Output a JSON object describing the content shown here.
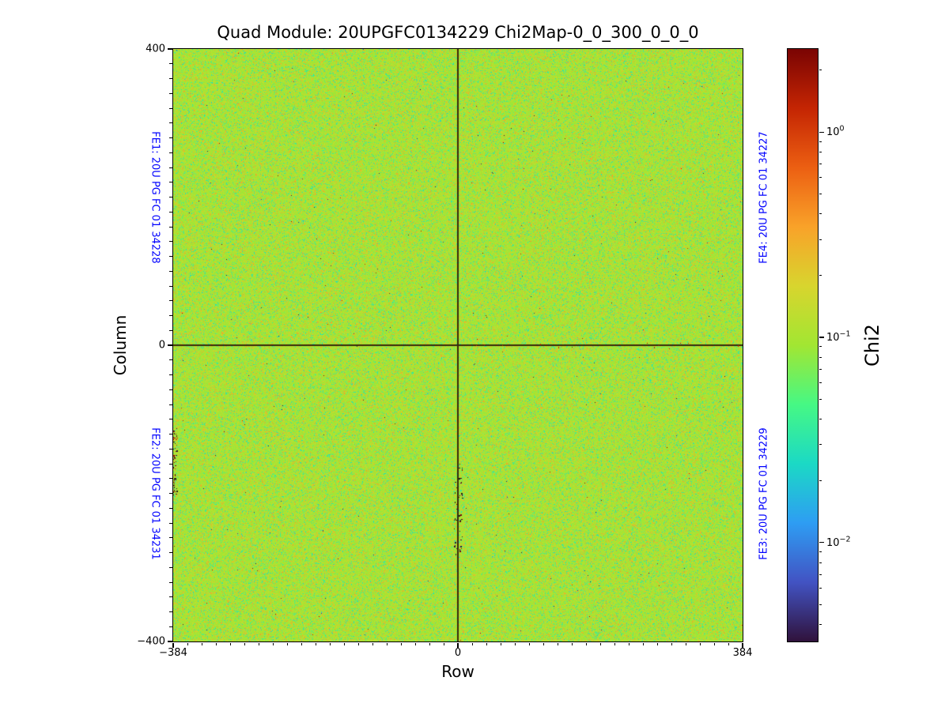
{
  "title": "Quad Module: 20UPGFC0134229 Chi2Map-0_0_300_0_0_0",
  "axes": {
    "xlabel": "Row",
    "ylabel": "Column",
    "xtick_labels": [
      "−384",
      "0",
      "384"
    ],
    "ytick_labels": [
      "400",
      "0",
      "−400"
    ]
  },
  "fe_labels": {
    "fe1": "FE1: 20U PG FC 01 34228",
    "fe2": "FE2: 20U PG FC 01 34231",
    "fe3": "FE3: 20U PG FC 01 34229",
    "fe4": "FE4: 20U PG FC 01 34227",
    "color": "#0000ff"
  },
  "colorbar": {
    "label": "Chi2",
    "scale": "log",
    "vmin": 0.0033,
    "vmax": 2.54,
    "major_ticks": [
      {
        "value": 1,
        "exponent": "0"
      },
      {
        "value": 0.1,
        "exponent": "−1"
      },
      {
        "value": 0.01,
        "exponent": "−2"
      }
    ],
    "cmap": "turbo",
    "turbo_stops": [
      [
        0.0,
        "#30123b"
      ],
      [
        0.1,
        "#4253c3"
      ],
      [
        0.2,
        "#2e9df3"
      ],
      [
        0.3,
        "#1bd9c5"
      ],
      [
        0.4,
        "#46f884"
      ],
      [
        0.5,
        "#a2e632"
      ],
      [
        0.6,
        "#d8d52e"
      ],
      [
        0.7,
        "#f9a229"
      ],
      [
        0.8,
        "#ec5f12"
      ],
      [
        0.9,
        "#c42503"
      ],
      [
        1.0,
        "#7a0403"
      ]
    ]
  },
  "chart_data": {
    "type": "heatmap",
    "title": "Quad Module: 20UPGFC0134229 Chi2Map-0_0_300_0_0_0",
    "xlabel": "Row",
    "ylabel": "Column",
    "value_label": "Chi2",
    "x_range": [
      -384,
      384
    ],
    "y_range": [
      -400,
      400
    ],
    "x_ticks": [
      -384,
      0,
      384
    ],
    "y_ticks": [
      -400,
      0,
      400
    ],
    "color_scale": "log",
    "vmin": 0.0033,
    "vmax": 2.54,
    "typical_value": 0.1,
    "legend_position": "right-colorbar",
    "grid": false,
    "description": "Per-pixel chi2 map of a quad module; nearly uniform chi2 ~0.1 (yellow-green) with scattered lower (teal, ~0.03-0.05) and higher (orange, ~0.3-0.5) pixels, rare extreme pixels, dark quadrant-boundary lines at Row=0 and Column=0, and small clusters of dark/failed pixels near the left edge and along the lower central column boundary.",
    "texture": {
      "base_t": 0.515,
      "base_sigma": 0.025,
      "teal_fraction": 0.085,
      "orange_fraction": 0.085,
      "extreme_fraction": 0.0006
    },
    "crosshair": {
      "row": 0,
      "column": 0,
      "color": "#38280a"
    }
  }
}
